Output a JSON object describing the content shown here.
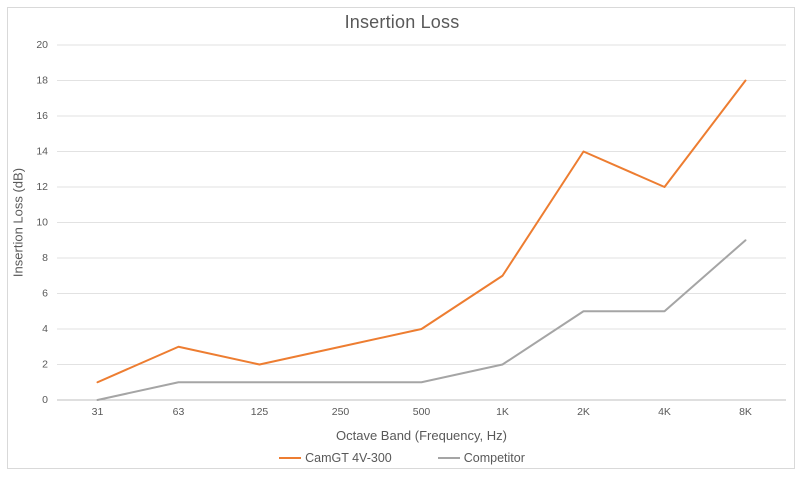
{
  "chart_data": {
    "type": "line",
    "title": "Insertion Loss",
    "xlabel": "Octave Band (Frequency, Hz)",
    "ylabel": "Insertion Loss (dB)",
    "categories": [
      "31",
      "63",
      "125",
      "250",
      "500",
      "1K",
      "2K",
      "4K",
      "8K"
    ],
    "series": [
      {
        "name": "CamGT 4V-300",
        "color": "#ED7D31",
        "values": [
          1,
          3,
          2,
          3,
          4,
          7,
          14,
          12,
          18
        ]
      },
      {
        "name": "Competitor",
        "color": "#A5A5A5",
        "values": [
          0,
          1,
          1,
          1,
          1,
          2,
          5,
          5,
          9
        ]
      }
    ],
    "ylim": [
      0,
      20
    ],
    "ytick_step": 2,
    "yticks": [
      0,
      2,
      4,
      6,
      8,
      10,
      12,
      14,
      16,
      18,
      20
    ],
    "grid": "horizontal",
    "legend_position": "bottom",
    "colors": {
      "gridline": "#E2E2E2",
      "axis_line": "#BFBFBF",
      "text": "#595959",
      "frame_border": "#D9D9D9",
      "background": "#FFFFFF"
    }
  }
}
